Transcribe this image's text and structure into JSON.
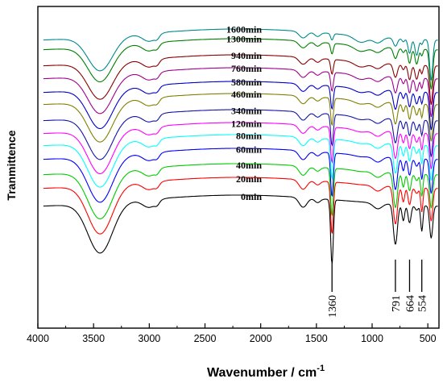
{
  "chart_data": {
    "type": "line",
    "title": "",
    "xlabel": "Wavenumber / cm",
    "xlabel_superscript": "-1",
    "ylabel": "Tranmittence",
    "xlim": [
      4000,
      400
    ],
    "x_reversed": true,
    "xticks": [
      4000,
      3500,
      3000,
      2500,
      2000,
      1500,
      1000,
      500
    ],
    "grid": false,
    "legend": "none",
    "series": [
      {
        "name": "0min",
        "color": "#000000"
      },
      {
        "name": "20min",
        "color": "#ff0000"
      },
      {
        "name": "40min",
        "color": "#00cc00"
      },
      {
        "name": "60min",
        "color": "#0000ff"
      },
      {
        "name": "80min",
        "color": "#00ffff"
      },
      {
        "name": "120min",
        "color": "#ff00ff"
      },
      {
        "name": "340min",
        "color": "#1414aa"
      },
      {
        "name": "460min",
        "color": "#808000"
      },
      {
        "name": "580min",
        "color": "#0000cc"
      },
      {
        "name": "760min",
        "color": "#a0008c"
      },
      {
        "name": "940min",
        "color": "#8b0000"
      },
      {
        "name": "1300min",
        "color": "#008000"
      },
      {
        "name": "1600min",
        "color": "#008b8b"
      }
    ],
    "annotations": [
      {
        "text": "1360",
        "x": 1360
      },
      {
        "text": "791",
        "x": 791
      },
      {
        "text": "664",
        "x": 664
      },
      {
        "text": "554",
        "x": 554
      }
    ]
  }
}
